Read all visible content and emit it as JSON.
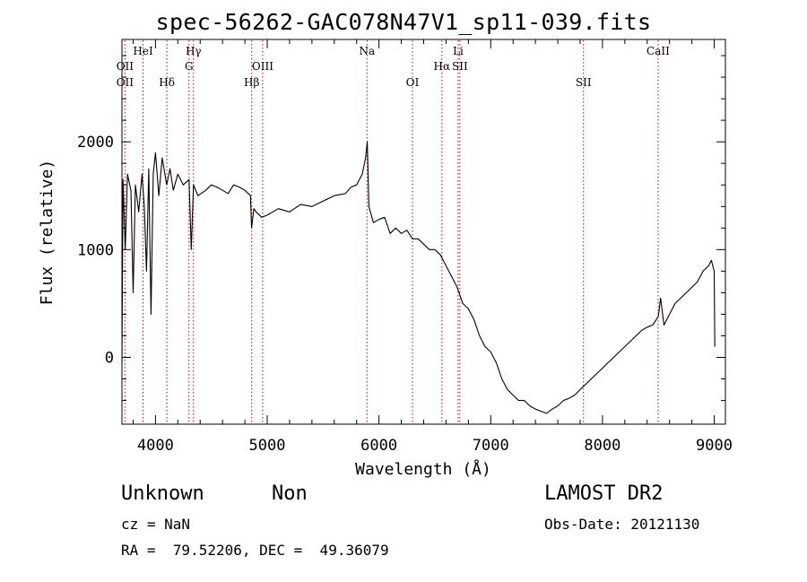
{
  "chart_data": {
    "type": "line",
    "title": "spec-56262-GAC078N47V1_sp11-039.fits",
    "xlabel": "Wavelength (Å)",
    "ylabel": "Flux (relative)",
    "xlim": [
      3700,
      9100
    ],
    "ylim": [
      -620,
      2950
    ],
    "xticks": [
      4000,
      5000,
      6000,
      7000,
      8000,
      9000
    ],
    "yticks": [
      0,
      1000,
      2000
    ],
    "grid": false,
    "line_color": "#000000",
    "marker_color": "#cc0000",
    "series": [
      {
        "x": [
          3700,
          3710,
          3730,
          3750,
          3780,
          3800,
          3820,
          3850,
          3880,
          3900,
          3920,
          3940,
          3960,
          3980,
          4000,
          4030,
          4060,
          4100,
          4130,
          4160,
          4200,
          4250,
          4300,
          4320,
          4340,
          4380,
          4450,
          4500,
          4550,
          4600,
          4650,
          4700,
          4750,
          4800,
          4850,
          4860,
          4880,
          4900,
          4950,
          5000,
          5100,
          5200,
          5300,
          5400,
          5500,
          5600,
          5700,
          5750,
          5800,
          5850,
          5880,
          5895,
          5910,
          5950,
          6000,
          6050,
          6100,
          6150,
          6200,
          6250,
          6300,
          6350,
          6400,
          6450,
          6500,
          6550,
          6600,
          6650,
          6700,
          6750,
          6800,
          6850,
          6900,
          6950,
          7000,
          7050,
          7100,
          7150,
          7200,
          7250,
          7300,
          7350,
          7400,
          7450,
          7500,
          7550,
          7600,
          7650,
          7700,
          7750,
          7800,
          7850,
          7900,
          7950,
          8000,
          8050,
          8100,
          8150,
          8200,
          8250,
          8300,
          8350,
          8400,
          8450,
          8500,
          8520,
          8550,
          8600,
          8650,
          8700,
          8750,
          8800,
          8850,
          8900,
          8950,
          8975,
          9000,
          9005
        ],
        "y": [
          -50,
          1650,
          1000,
          1700,
          1550,
          600,
          1600,
          1350,
          1700,
          1400,
          800,
          1750,
          400,
          1700,
          1900,
          1500,
          1850,
          1600,
          1750,
          1550,
          1700,
          1600,
          1650,
          1000,
          1600,
          1500,
          1550,
          1600,
          1580,
          1550,
          1520,
          1600,
          1580,
          1550,
          1500,
          1200,
          1380,
          1350,
          1300,
          1320,
          1380,
          1350,
          1420,
          1400,
          1450,
          1500,
          1520,
          1580,
          1600,
          1700,
          1850,
          2000,
          1400,
          1250,
          1280,
          1300,
          1150,
          1200,
          1150,
          1180,
          1100,
          1100,
          1050,
          1000,
          1000,
          950,
          850,
          750,
          650,
          500,
          450,
          350,
          200,
          100,
          50,
          -50,
          -200,
          -300,
          -350,
          -400,
          -400,
          -450,
          -480,
          -500,
          -520,
          -480,
          -450,
          -400,
          -380,
          -350,
          -300,
          -250,
          -200,
          -150,
          -100,
          -50,
          0,
          50,
          100,
          150,
          200,
          250,
          280,
          300,
          380,
          550,
          300,
          400,
          500,
          550,
          600,
          650,
          700,
          800,
          850,
          900,
          800,
          100
        ]
      }
    ],
    "line_markers": [
      {
        "wavelength": 3727,
        "labels": [
          "OII",
          "OII"
        ],
        "rows": [
          1,
          2
        ]
      },
      {
        "wavelength": 3889,
        "labels": [
          "HeI"
        ],
        "rows": [
          0
        ]
      },
      {
        "wavelength": 4102,
        "labels": [
          "Hδ"
        ],
        "rows": [
          2
        ]
      },
      {
        "wavelength": 4300,
        "labels": [
          "G"
        ],
        "rows": [
          1
        ]
      },
      {
        "wavelength": 4340,
        "labels": [
          "Hγ"
        ],
        "rows": [
          0
        ]
      },
      {
        "wavelength": 4861,
        "labels": [
          "Hβ"
        ],
        "rows": [
          2
        ]
      },
      {
        "wavelength": 4959,
        "labels": [
          "OIII"
        ],
        "rows": [
          1
        ]
      },
      {
        "wavelength": 5893,
        "labels": [
          "Na"
        ],
        "rows": [
          0
        ]
      },
      {
        "wavelength": 6300,
        "labels": [
          "OI"
        ],
        "rows": [
          2
        ]
      },
      {
        "wavelength": 6563,
        "labels": [
          "Hα"
        ],
        "rows": [
          1
        ]
      },
      {
        "wavelength": 6708,
        "labels": [
          "Li"
        ],
        "rows": [
          0
        ]
      },
      {
        "wavelength": 6724,
        "labels": [
          "SII"
        ],
        "rows": [
          1
        ]
      },
      {
        "wavelength": 7830,
        "labels": [
          "SII"
        ],
        "rows": [
          2
        ]
      },
      {
        "wavelength": 8498,
        "labels": [
          "CaII"
        ],
        "rows": [
          0
        ]
      }
    ]
  },
  "info": {
    "class": "Unknown",
    "subclass": "Non",
    "survey": "LAMOST DR2",
    "cz": "cz = NaN",
    "obs_date": "Obs-Date: 20121130",
    "coords": "RA =  79.52206, DEC =  49.36079"
  }
}
